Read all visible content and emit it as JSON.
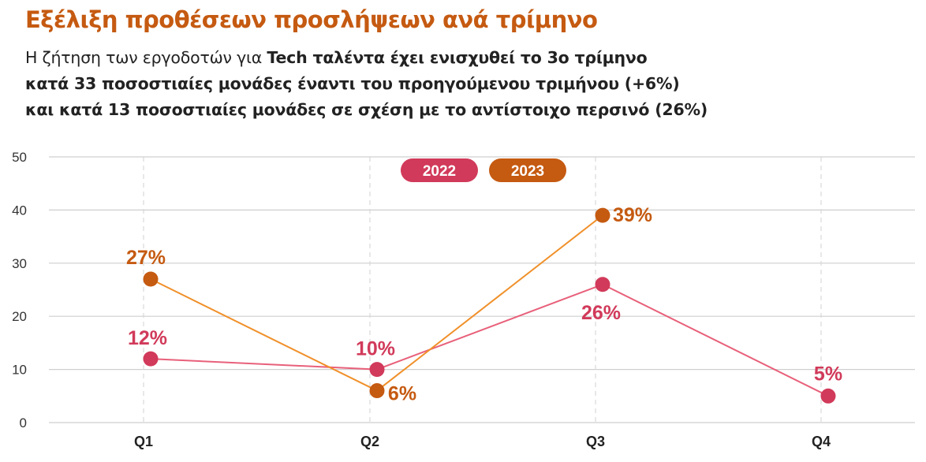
{
  "header": {
    "title": "Εξέλιξη προθέσεων προσλήψεων ανά τρίμηνο",
    "line1_normal": "Η ζήτηση των εργοδοτών για ",
    "line1_bold": "Tech ταλέντα έχει ενισχυθεί το 3ο τρίμηνο",
    "line2": "κατά 33 ποσοστιαίες μονάδες έναντι του προηγούμενου τριμήνου (+6%)",
    "line3": "και κατά 13 ποσοστιαίες μονάδες σε σχέση με το αντίστοιχο περσινό (26%)"
  },
  "colors": {
    "s2022": "#d13a5a",
    "s2022_line": "#e8607a",
    "s2023": "#c55a11",
    "s2023_line": "#f0902a",
    "grid": "#cfcfcf"
  },
  "chart_data": {
    "type": "line",
    "title": "Εξέλιξη προθέσεων προσλήψεων ανά τρίμηνο",
    "xlabel": "",
    "ylabel": "",
    "categories": [
      "Q1",
      "Q2",
      "Q3",
      "Q4"
    ],
    "ylim": [
      0,
      50
    ],
    "yticks": [
      "0",
      "10",
      "20",
      "30",
      "40",
      "50"
    ],
    "grid": true,
    "legend_position": "top-center",
    "series": [
      {
        "name": "2022",
        "values": [
          12,
          10,
          26,
          5
        ],
        "labels": [
          "12%",
          "10%",
          "26%",
          "5%"
        ]
      },
      {
        "name": "2023",
        "values": [
          27,
          6,
          39,
          null
        ],
        "labels": [
          "27%",
          "6%",
          "39%",
          null
        ]
      }
    ]
  }
}
